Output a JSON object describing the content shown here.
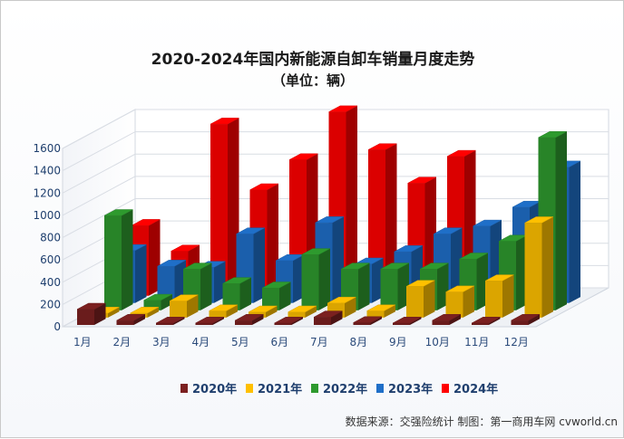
{
  "chart_data": {
    "type": "bar",
    "title": "2020-2024年国内新能源自卸车销量月度走势",
    "subtitle": "（单位：辆）",
    "categories": [
      "1月",
      "2月",
      "3月",
      "4月",
      "5月",
      "6月",
      "7月",
      "8月",
      "9月",
      "10月",
      "11月",
      "12月"
    ],
    "y_ticks": [
      "0",
      "200",
      "400",
      "600",
      "800",
      "1000",
      "1200",
      "1400",
      "1600"
    ],
    "ylim": [
      0,
      1600
    ],
    "grid": true,
    "legend_position": "bottom",
    "series": [
      {
        "name": "2020年",
        "color": "#7b2020",
        "values": [
          140,
          40,
          5,
          5,
          40,
          10,
          70,
          20,
          10,
          40,
          10,
          40
        ]
      },
      {
        "name": "2021年",
        "color": "#ffc000",
        "values": [
          40,
          40,
          150,
          60,
          50,
          50,
          130,
          60,
          280,
          230,
          330,
          850
        ]
      },
      {
        "name": "2022年",
        "color": "#2e9a2e",
        "values": [
          850,
          90,
          370,
          240,
          200,
          500,
          370,
          370,
          370,
          460,
          620,
          1550
        ]
      },
      {
        "name": "2023年",
        "color": "#1f6fc8",
        "values": [
          470,
          330,
          320,
          620,
          380,
          720,
          350,
          460,
          620,
          690,
          860,
          1220
        ]
      },
      {
        "name": "2024年",
        "color": "#ff0000",
        "values": [
          630,
          400,
          1540,
          950,
          1220,
          1650,
          1310,
          1010,
          1250,
          40,
          0,
          0
        ]
      }
    ]
  },
  "source_note": "数据来源：交强险统计  制图：第一商用车网 cvworld.cn"
}
